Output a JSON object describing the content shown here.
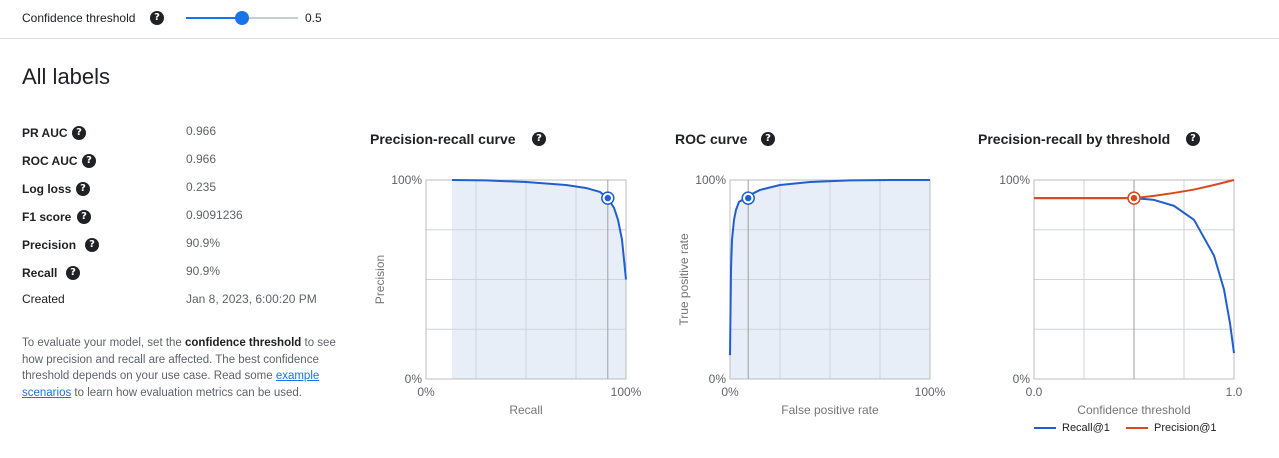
{
  "threshold": {
    "label": "Confidence threshold",
    "help": "?",
    "value": 0.5,
    "value_text": "0.5"
  },
  "title": "All labels",
  "metrics": [
    {
      "name": "PR AUC",
      "value": "0.966",
      "help": true
    },
    {
      "name": "ROC AUC",
      "value": "0.966",
      "help": true
    },
    {
      "name": "Log loss",
      "value": "0.235",
      "help": true
    },
    {
      "name": "F1 score",
      "value": "0.9091236",
      "help": true
    },
    {
      "name": "Precision",
      "value": "90.9%",
      "help": true
    },
    {
      "name": "Recall",
      "value": "90.9%",
      "help": true
    },
    {
      "name": "Created",
      "value": "Jan 8, 2023, 6:00:20 PM",
      "help": false
    }
  ],
  "description": {
    "part1": "To evaluate your model, set the ",
    "bold": "confidence threshold",
    "part2": " to see how precision and recall are affected. The best confidence threshold depends on your use case. Read some ",
    "link": "example scenarios",
    "part3": " to learn how evaluation metrics can be used."
  },
  "colors": {
    "recall": "#1f5fd1",
    "precision": "#d84a1b",
    "fill": "#e8eef8",
    "accent": "#1a73e8"
  },
  "chart_data": [
    {
      "type": "area",
      "title": "Precision-recall curve",
      "xlabel": "Recall",
      "ylabel": "Precision",
      "xlim": [
        0,
        1
      ],
      "ylim": [
        0,
        1
      ],
      "x_ticks": [
        "0%",
        "100%"
      ],
      "y_ticks": [
        "0%",
        "100%"
      ],
      "grid": true,
      "series": [
        {
          "x": [
            0.13,
            0.3,
            0.5,
            0.7,
            0.8,
            0.87,
            0.909,
            0.94,
            0.96,
            0.98,
            0.99,
            1.0
          ],
          "y": [
            1.0,
            0.998,
            0.99,
            0.975,
            0.96,
            0.94,
            0.909,
            0.86,
            0.8,
            0.7,
            0.6,
            0.5
          ]
        }
      ],
      "marker": {
        "x": 0.909,
        "y": 0.909
      }
    },
    {
      "type": "area",
      "title": "ROC curve",
      "xlabel": "False positive rate",
      "ylabel": "True positive rate",
      "xlim": [
        0,
        1
      ],
      "ylim": [
        0,
        1
      ],
      "x_ticks": [
        "0%",
        "100%"
      ],
      "y_ticks": [
        "0%",
        "100%"
      ],
      "grid": true,
      "series": [
        {
          "x": [
            0.0,
            0.005,
            0.01,
            0.02,
            0.03,
            0.045,
            0.07,
            0.1,
            0.15,
            0.25,
            0.4,
            0.6,
            0.8,
            1.0
          ],
          "y": [
            0.12,
            0.55,
            0.7,
            0.8,
            0.85,
            0.89,
            0.905,
            0.925,
            0.95,
            0.975,
            0.99,
            0.998,
            1.0,
            1.0
          ]
        }
      ],
      "marker": {
        "x": 0.091,
        "y": 0.909
      }
    },
    {
      "type": "line",
      "title": "Precision-recall by threshold",
      "xlabel": "Confidence threshold",
      "ylabel": "",
      "xlim": [
        0,
        1
      ],
      "ylim": [
        0,
        1
      ],
      "x_ticks": [
        "0.0",
        "1.0"
      ],
      "y_ticks": [
        "0%",
        "100%"
      ],
      "grid": true,
      "legend": "bottom",
      "series": [
        {
          "name": "Recall@1",
          "color": "#1f5fd1",
          "x": [
            0,
            0.5,
            0.6,
            0.7,
            0.8,
            0.9,
            0.95,
            0.98,
            1.0
          ],
          "y": [
            0.909,
            0.909,
            0.9,
            0.87,
            0.8,
            0.62,
            0.45,
            0.28,
            0.13
          ]
        },
        {
          "name": "Precision@1",
          "color": "#d84a1b",
          "x": [
            0,
            0.5,
            0.6,
            0.7,
            0.8,
            0.9,
            1.0
          ],
          "y": [
            0.909,
            0.909,
            0.92,
            0.935,
            0.952,
            0.975,
            1.0
          ]
        }
      ],
      "marker": {
        "x": 0.5,
        "y": 0.909
      }
    }
  ]
}
